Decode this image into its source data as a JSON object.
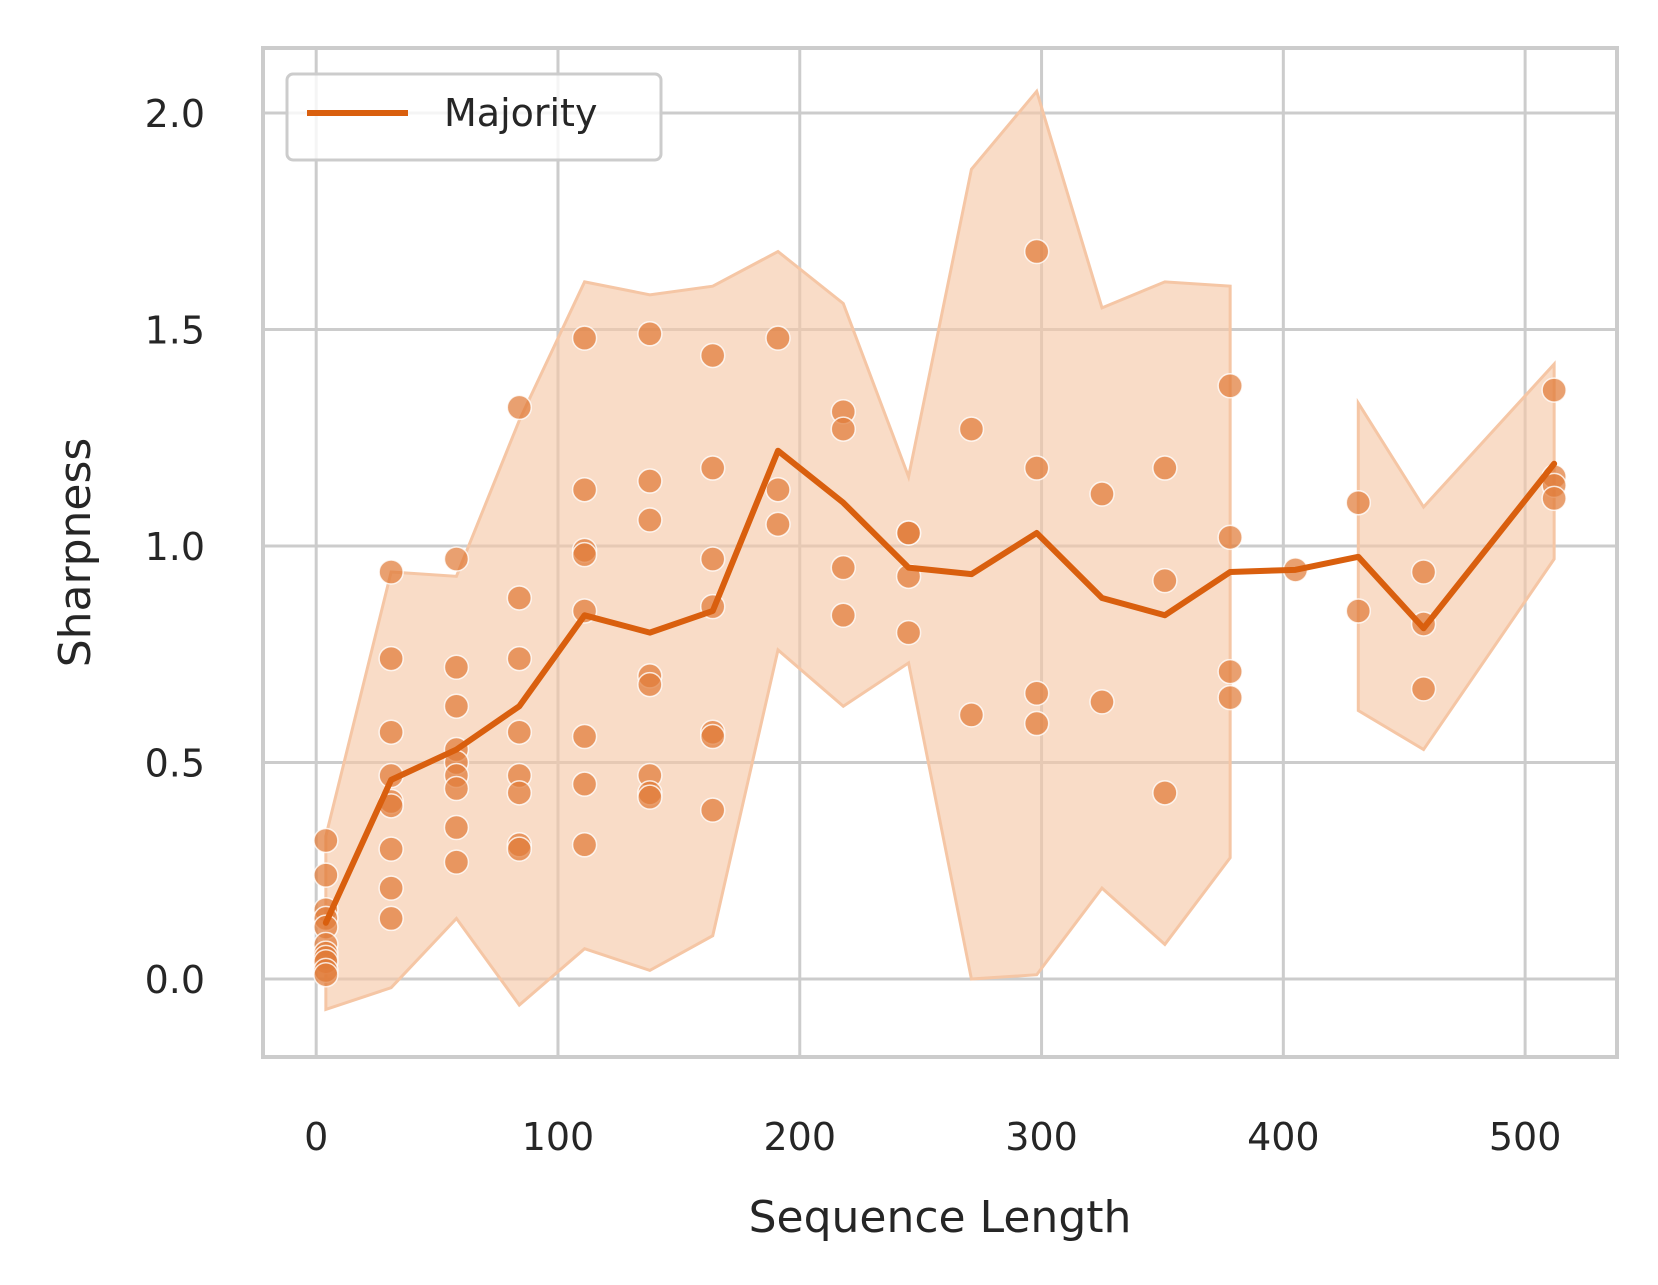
{
  "chart_data": {
    "type": "line",
    "xlabel": "Sequence Length",
    "ylabel": "Sharpness",
    "xlim": [
      -22,
      538
    ],
    "ylim": [
      -0.18,
      2.15
    ],
    "xticks": [
      0,
      100,
      200,
      300,
      400,
      500
    ],
    "yticks": [
      0.0,
      0.5,
      1.0,
      1.5,
      2.0
    ],
    "xtick_labels": [
      "0",
      "100",
      "200",
      "300",
      "400",
      "500"
    ],
    "ytick_labels": [
      "0.0",
      "0.5",
      "1.0",
      "1.5",
      "2.0"
    ],
    "grid": true,
    "legend_position": "top-left",
    "colors": {
      "line": "#d95f0e",
      "band": "#f5c6a5",
      "points": "#e07b39",
      "grid": "#cccccc",
      "text": "#262626"
    },
    "series": [
      {
        "name": "Majority",
        "type": "line",
        "x": [
          4,
          31,
          58,
          84,
          111,
          138,
          164,
          191,
          218,
          245,
          271,
          298,
          325,
          351,
          378,
          405,
          431,
          458,
          512
        ],
        "y": [
          0.13,
          0.46,
          0.53,
          0.63,
          0.84,
          0.8,
          0.85,
          1.22,
          1.1,
          0.95,
          0.935,
          1.03,
          0.88,
          0.84,
          0.94,
          0.945,
          0.975,
          0.81,
          1.19
        ]
      }
    ],
    "confidence_band": {
      "segments": [
        {
          "x": [
            4,
            31,
            58,
            84,
            111,
            138,
            164,
            191,
            218,
            245,
            271,
            298,
            325,
            351,
            378
          ],
          "lower": [
            -0.07,
            -0.02,
            0.14,
            -0.06,
            0.07,
            0.02,
            0.1,
            0.76,
            0.63,
            0.73,
            0.0,
            0.01,
            0.21,
            0.08,
            0.28
          ],
          "upper": [
            0.33,
            0.94,
            0.93,
            1.29,
            1.61,
            1.58,
            1.6,
            1.68,
            1.56,
            1.16,
            1.87,
            2.05,
            1.55,
            1.61,
            1.6
          ]
        },
        {
          "x": [
            431,
            458,
            512
          ],
          "lower": [
            0.62,
            0.53,
            0.97
          ],
          "upper": [
            1.33,
            1.09,
            1.42
          ]
        }
      ]
    },
    "scatter_points": [
      {
        "x": 4,
        "y": 0.32
      },
      {
        "x": 4,
        "y": 0.24
      },
      {
        "x": 4,
        "y": 0.16
      },
      {
        "x": 4,
        "y": 0.14
      },
      {
        "x": 4,
        "y": 0.12
      },
      {
        "x": 4,
        "y": 0.08
      },
      {
        "x": 4,
        "y": 0.06
      },
      {
        "x": 4,
        "y": 0.05
      },
      {
        "x": 4,
        "y": 0.04
      },
      {
        "x": 4,
        "y": 0.02
      },
      {
        "x": 4,
        "y": 0.01
      },
      {
        "x": 31,
        "y": 0.94
      },
      {
        "x": 31,
        "y": 0.74
      },
      {
        "x": 31,
        "y": 0.57
      },
      {
        "x": 31,
        "y": 0.47
      },
      {
        "x": 31,
        "y": 0.41
      },
      {
        "x": 31,
        "y": 0.4
      },
      {
        "x": 31,
        "y": 0.3
      },
      {
        "x": 31,
        "y": 0.21
      },
      {
        "x": 31,
        "y": 0.14
      },
      {
        "x": 58,
        "y": 0.97
      },
      {
        "x": 58,
        "y": 0.72
      },
      {
        "x": 58,
        "y": 0.63
      },
      {
        "x": 58,
        "y": 0.53
      },
      {
        "x": 58,
        "y": 0.5
      },
      {
        "x": 58,
        "y": 0.47
      },
      {
        "x": 58,
        "y": 0.44
      },
      {
        "x": 58,
        "y": 0.35
      },
      {
        "x": 58,
        "y": 0.27
      },
      {
        "x": 84,
        "y": 1.32
      },
      {
        "x": 84,
        "y": 0.88
      },
      {
        "x": 84,
        "y": 0.74
      },
      {
        "x": 84,
        "y": 0.57
      },
      {
        "x": 84,
        "y": 0.47
      },
      {
        "x": 84,
        "y": 0.43
      },
      {
        "x": 84,
        "y": 0.31
      },
      {
        "x": 84,
        "y": 0.3
      },
      {
        "x": 111,
        "y": 1.48
      },
      {
        "x": 111,
        "y": 1.13
      },
      {
        "x": 111,
        "y": 0.99
      },
      {
        "x": 111,
        "y": 0.98
      },
      {
        "x": 111,
        "y": 0.85
      },
      {
        "x": 111,
        "y": 0.56
      },
      {
        "x": 111,
        "y": 0.45
      },
      {
        "x": 111,
        "y": 0.31
      },
      {
        "x": 138,
        "y": 1.49
      },
      {
        "x": 138,
        "y": 1.15
      },
      {
        "x": 138,
        "y": 1.06
      },
      {
        "x": 138,
        "y": 0.7
      },
      {
        "x": 138,
        "y": 0.68
      },
      {
        "x": 138,
        "y": 0.47
      },
      {
        "x": 138,
        "y": 0.43
      },
      {
        "x": 138,
        "y": 0.42
      },
      {
        "x": 164,
        "y": 1.44
      },
      {
        "x": 164,
        "y": 1.18
      },
      {
        "x": 164,
        "y": 0.97
      },
      {
        "x": 164,
        "y": 0.86
      },
      {
        "x": 164,
        "y": 0.57
      },
      {
        "x": 164,
        "y": 0.56
      },
      {
        "x": 164,
        "y": 0.39
      },
      {
        "x": 191,
        "y": 1.48
      },
      {
        "x": 191,
        "y": 1.13
      },
      {
        "x": 191,
        "y": 1.05
      },
      {
        "x": 218,
        "y": 1.31
      },
      {
        "x": 218,
        "y": 1.27
      },
      {
        "x": 218,
        "y": 0.95
      },
      {
        "x": 218,
        "y": 0.84
      },
      {
        "x": 245,
        "y": 1.03
      },
      {
        "x": 245,
        "y": 1.03
      },
      {
        "x": 245,
        "y": 0.93
      },
      {
        "x": 245,
        "y": 0.8
      },
      {
        "x": 271,
        "y": 1.27
      },
      {
        "x": 271,
        "y": 0.61
      },
      {
        "x": 298,
        "y": 1.68
      },
      {
        "x": 298,
        "y": 1.18
      },
      {
        "x": 298,
        "y": 0.66
      },
      {
        "x": 298,
        "y": 0.59
      },
      {
        "x": 325,
        "y": 1.12
      },
      {
        "x": 325,
        "y": 0.64
      },
      {
        "x": 351,
        "y": 1.18
      },
      {
        "x": 351,
        "y": 0.92
      },
      {
        "x": 351,
        "y": 0.43
      },
      {
        "x": 378,
        "y": 1.37
      },
      {
        "x": 378,
        "y": 1.02
      },
      {
        "x": 378,
        "y": 0.71
      },
      {
        "x": 378,
        "y": 0.65
      },
      {
        "x": 405,
        "y": 0.945
      },
      {
        "x": 431,
        "y": 1.1
      },
      {
        "x": 431,
        "y": 0.85
      },
      {
        "x": 458,
        "y": 0.94
      },
      {
        "x": 458,
        "y": 0.82
      },
      {
        "x": 458,
        "y": 0.67
      },
      {
        "x": 512,
        "y": 1.36
      },
      {
        "x": 512,
        "y": 1.16
      },
      {
        "x": 512,
        "y": 1.14
      },
      {
        "x": 512,
        "y": 1.11
      }
    ]
  }
}
